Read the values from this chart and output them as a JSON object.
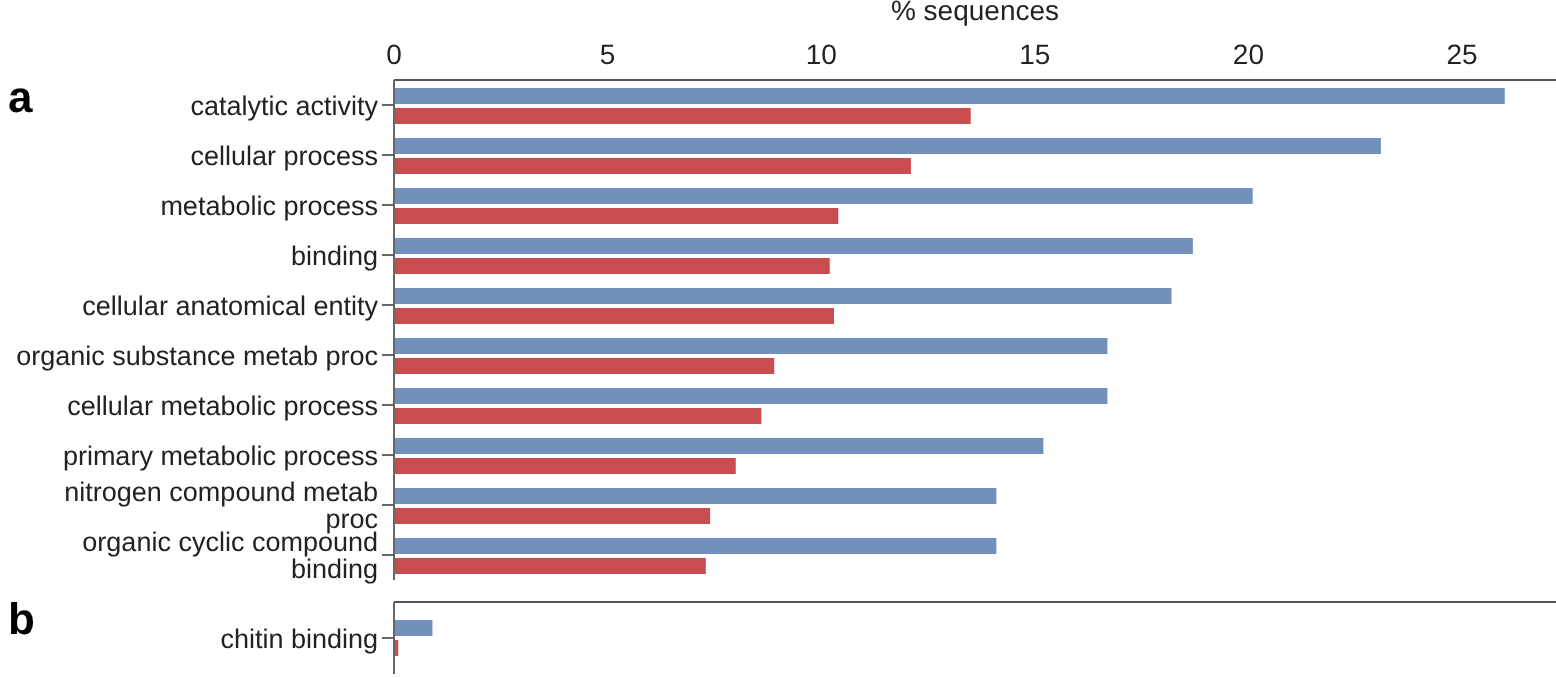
{
  "chart_data": [
    {
      "type": "bar",
      "title": "a",
      "orientation": "horizontal",
      "xlabel": "% sequences",
      "categories": [
        "catalytic activity",
        "cellular process",
        "metabolic process",
        "binding",
        "cellular anatomical entity",
        "organic substance metab proc",
        "cellular metabolic process",
        "primary metabolic process",
        "nitrogen compound metab proc",
        "organic cyclic compound binding"
      ],
      "series": [
        {
          "color": "#7190bc",
          "values": [
            26.0,
            23.1,
            20.1,
            18.7,
            18.2,
            16.7,
            16.7,
            15.2,
            14.1,
            14.1
          ]
        },
        {
          "color": "#c94c4e",
          "values": [
            13.5,
            12.1,
            10.4,
            10.2,
            10.3,
            8.9,
            8.6,
            8.0,
            7.4,
            7.3
          ]
        }
      ],
      "xlim": [
        0,
        27.2
      ],
      "xticks": [
        0,
        5,
        10,
        15,
        20,
        25
      ],
      "grid": false,
      "legend": false
    },
    {
      "type": "bar",
      "title": "b",
      "orientation": "horizontal",
      "categories": [
        "chitin binding"
      ],
      "series": [
        {
          "color": "#7190bc",
          "values": [
            0.9
          ]
        },
        {
          "color": "#c94c4e",
          "values": [
            0.1
          ]
        }
      ],
      "xlim": [
        0,
        27.2
      ],
      "xticks": [
        0,
        5,
        10,
        15,
        20,
        25
      ],
      "tick_labels": "y",
      "grid": false,
      "legend": false
    }
  ]
}
